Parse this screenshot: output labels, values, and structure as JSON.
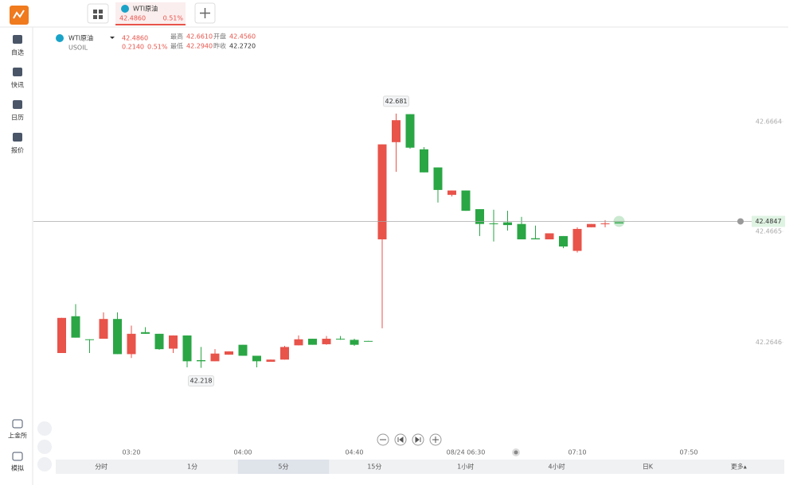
{
  "top_bar": {
    "tab": {
      "name": "WTI原油",
      "price": "42.4860",
      "change": "0.51%"
    }
  },
  "sidebar_top": [
    "自选",
    "快讯",
    "日历",
    "报价"
  ],
  "sidebar_bottom": [
    "上金所",
    "模拟"
  ],
  "quote": {
    "name": "WTI原油",
    "code": "USOIL",
    "price": "42.4860",
    "change": "0.2140",
    "change_pct": "0.51%",
    "stats": [
      [
        "最高",
        "42.6610"
      ],
      [
        "开盘",
        "42.4560"
      ],
      [
        "最低",
        "42.2940"
      ],
      [
        "昨收",
        "42.2720"
      ]
    ]
  },
  "chart_data": {
    "type": "candlestick",
    "categories": [
      null,
      null,
      null,
      null,
      null,
      "03:20",
      null,
      null,
      null,
      null,
      null,
      null,
      null,
      "04:00",
      null,
      null,
      null,
      null,
      null,
      null,
      null,
      "04:40",
      null,
      null,
      null,
      null,
      null,
      null,
      null,
      "08/24 06:30",
      null,
      null,
      null,
      null,
      null,
      null,
      null,
      "07:10",
      null,
      null,
      null,
      null,
      null,
      null,
      null,
      "07:50"
    ],
    "open": [
      42.245,
      42.312,
      42.27,
      42.271,
      42.307,
      42.243,
      42.283,
      42.28,
      42.253,
      42.277,
      42.232,
      42.23,
      42.242,
      42.26,
      42.24,
      42.229,
      42.233,
      42.259,
      42.271,
      42.261,
      42.271,
      42.269,
      42.267,
      42.452,
      42.629,
      42.68,
      42.616,
      42.583,
      42.533,
      42.541,
      42.507,
      42.481,
      42.483,
      42.48,
      42.454,
      42.452,
      42.458,
      42.431,
      42.474,
      42.48,
      42.483,
      null,
      null,
      null,
      null,
      null
    ],
    "high": [
      42.309,
      42.334,
      42.27,
      42.319,
      42.319,
      42.295,
      42.292,
      42.28,
      42.277,
      42.277,
      42.256,
      42.252,
      42.248,
      42.26,
      42.24,
      42.233,
      42.258,
      42.277,
      42.271,
      42.276,
      42.276,
      42.271,
      42.267,
      42.625,
      42.681,
      42.68,
      42.62,
      42.583,
      42.541,
      42.541,
      42.507,
      42.506,
      42.504,
      42.493,
      42.477,
      42.463,
      42.458,
      42.474,
      42.48,
      42.487,
      42.483,
      null,
      null,
      null,
      null,
      null
    ],
    "low": [
      42.245,
      42.273,
      42.245,
      42.271,
      42.243,
      42.236,
      42.28,
      42.251,
      42.245,
      42.219,
      42.218,
      42.23,
      42.242,
      42.24,
      42.219,
      42.229,
      42.233,
      42.259,
      42.26,
      42.26,
      42.269,
      42.258,
      42.266,
      42.29,
      42.575,
      42.617,
      42.574,
      42.519,
      42.53,
      42.504,
      42.458,
      42.448,
      42.468,
      42.452,
      42.452,
      42.452,
      42.436,
      42.428,
      42.474,
      42.474,
      42.481,
      null,
      null,
      null,
      null,
      null
    ],
    "close": [
      42.309,
      42.273,
      42.269,
      42.307,
      42.243,
      42.28,
      42.28,
      42.252,
      42.277,
      42.23,
      42.23,
      42.244,
      42.248,
      42.24,
      42.23,
      42.233,
      42.256,
      42.27,
      42.26,
      42.271,
      42.27,
      42.26,
      42.266,
      42.625,
      42.669,
      42.619,
      42.574,
      42.542,
      42.541,
      42.504,
      42.48,
      42.48,
      42.478,
      42.452,
      42.452,
      42.463,
      42.439,
      42.471,
      42.48,
      42.481,
      42.481,
      null,
      null,
      null,
      null,
      null
    ],
    "up_color": "#e8534a",
    "down_color": "#2aa645",
    "ylim": [
      42.106,
      42.83
    ],
    "yticks": [
      42.6664,
      42.4665,
      42.2646
    ],
    "max_label": 42.681,
    "min_label": 42.218,
    "last_price": 42.4847
  },
  "period_bar": {
    "items": [
      "分时",
      "1分",
      "5分",
      "15分",
      "1小时",
      "4小时",
      "日K",
      "更多▴"
    ],
    "selected": 2
  }
}
